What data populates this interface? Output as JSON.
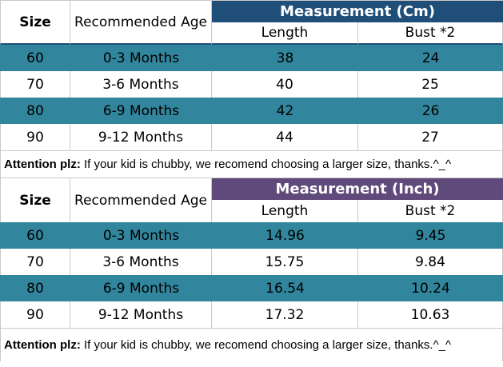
{
  "colors": {
    "cm_header_bg": "#1F4E79",
    "inch_header_bg": "#604A7B",
    "stripe_row_bg": "#31859C",
    "grid_line": "#C9C9C9",
    "header_text": "#FFFFFF",
    "body_text": "#000000"
  },
  "chart_data": [
    {
      "type": "table",
      "group_header": "Measurement (Cm)",
      "columns": [
        "Size",
        "Recommended Age",
        "Length",
        "Bust *2"
      ],
      "rows": [
        [
          "60",
          "0-3 Months",
          "38",
          "24"
        ],
        [
          "70",
          "3-6 Months",
          "40",
          "25"
        ],
        [
          "80",
          "6-9 Months",
          "42",
          "26"
        ],
        [
          "90",
          "9-12 Months",
          "44",
          "27"
        ]
      ],
      "note": {
        "bold": "Attention plz:",
        "text": " If your kid is chubby, we recomend choosing a larger size, thanks.^_^"
      }
    },
    {
      "type": "table",
      "group_header": "Measurement (Inch)",
      "columns": [
        "Size",
        "Recommended Age",
        "Length",
        "Bust *2"
      ],
      "rows": [
        [
          "60",
          "0-3 Months",
          "14.96",
          "9.45"
        ],
        [
          "70",
          "3-6 Months",
          "15.75",
          "9.84"
        ],
        [
          "80",
          "6-9 Months",
          "16.54",
          "10.24"
        ],
        [
          "90",
          "9-12 Months",
          "17.32",
          "10.63"
        ]
      ],
      "note": {
        "bold": "Attention plz:",
        "text": " If your kid is chubby, we recomend choosing a larger size, thanks.^_^"
      }
    }
  ]
}
